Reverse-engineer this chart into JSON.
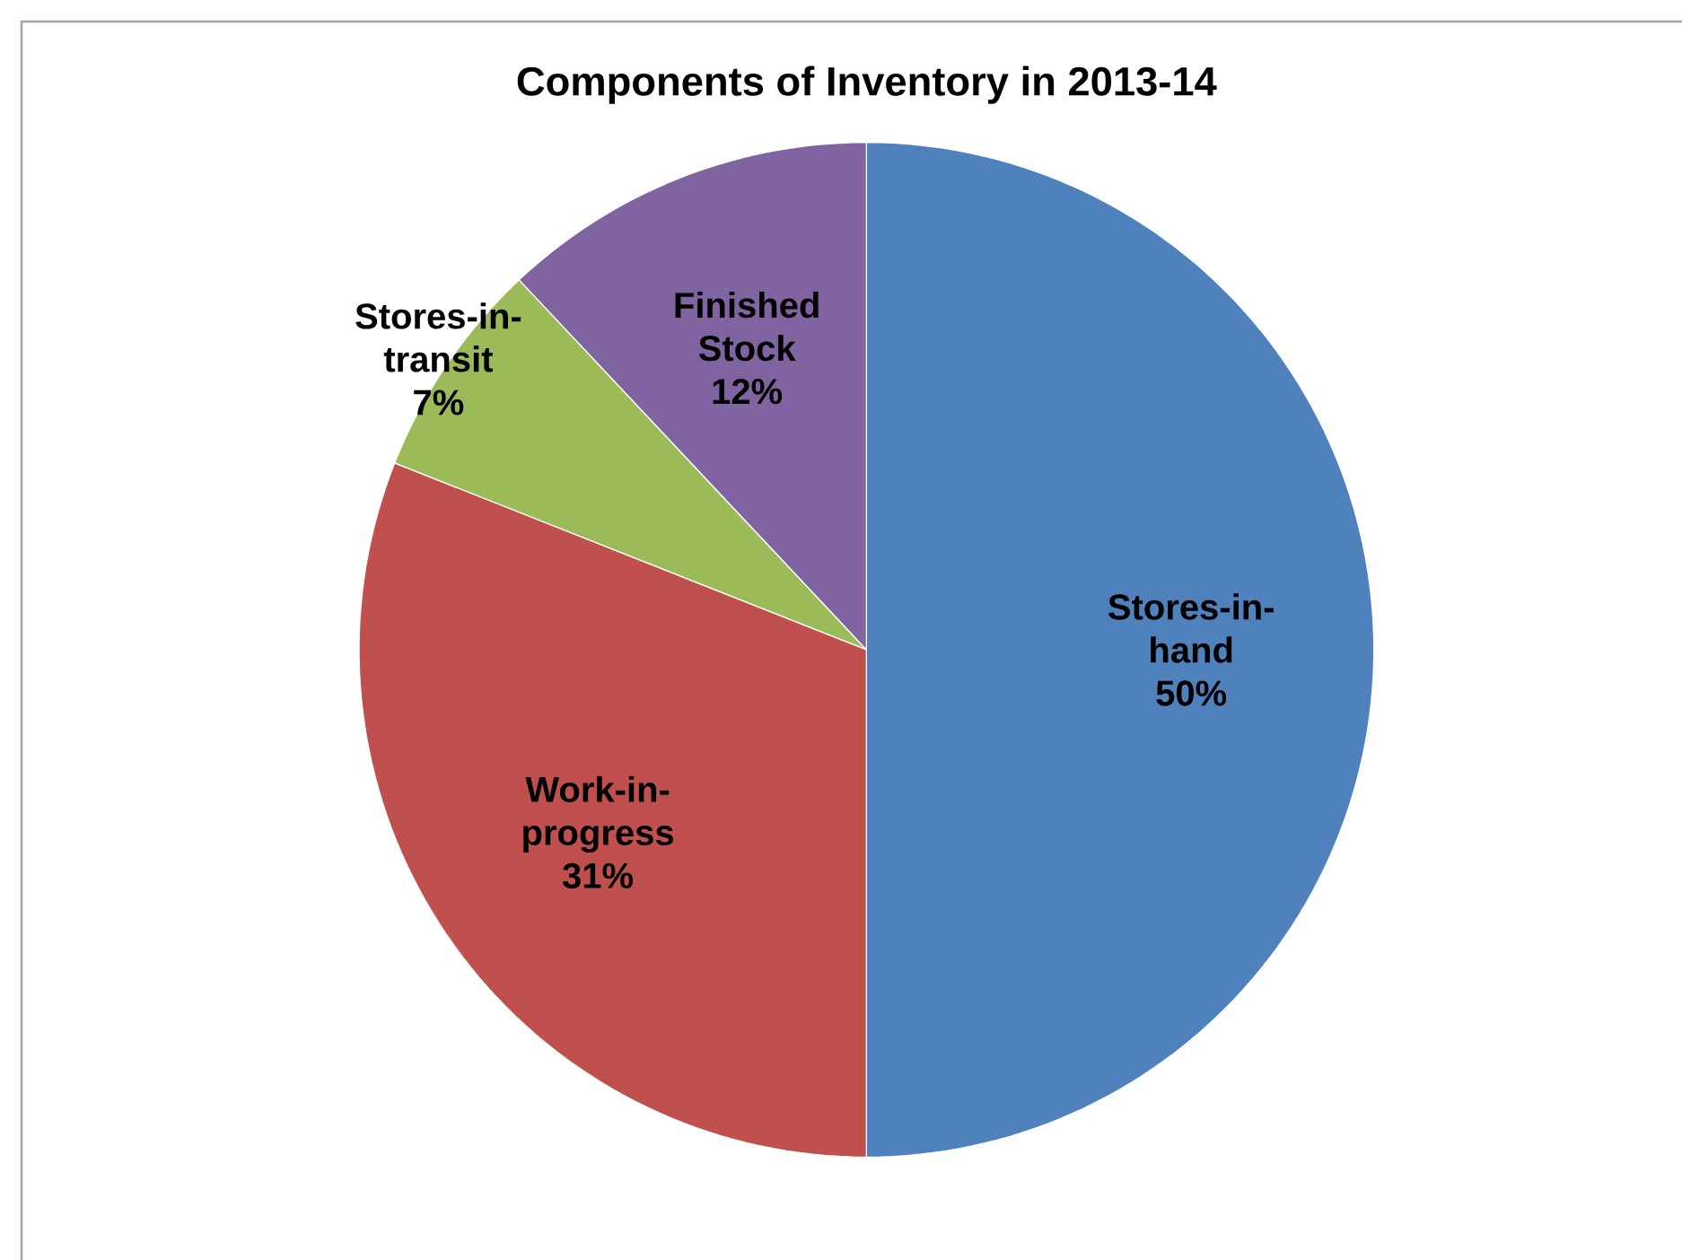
{
  "chart_data": {
    "type": "pie",
    "title": "Components of Inventory in 2013-14",
    "categories": [
      "Stores-in-hand",
      "Work-in-progress",
      "Stores-in-transit",
      "Finished Stock"
    ],
    "values": [
      50,
      31,
      7,
      12
    ],
    "value_labels": [
      "50%",
      "31%",
      "7%",
      "12%"
    ],
    "colors": [
      "#4f81bd",
      "#c0504d",
      "#9bbb59",
      "#8064a2"
    ]
  }
}
